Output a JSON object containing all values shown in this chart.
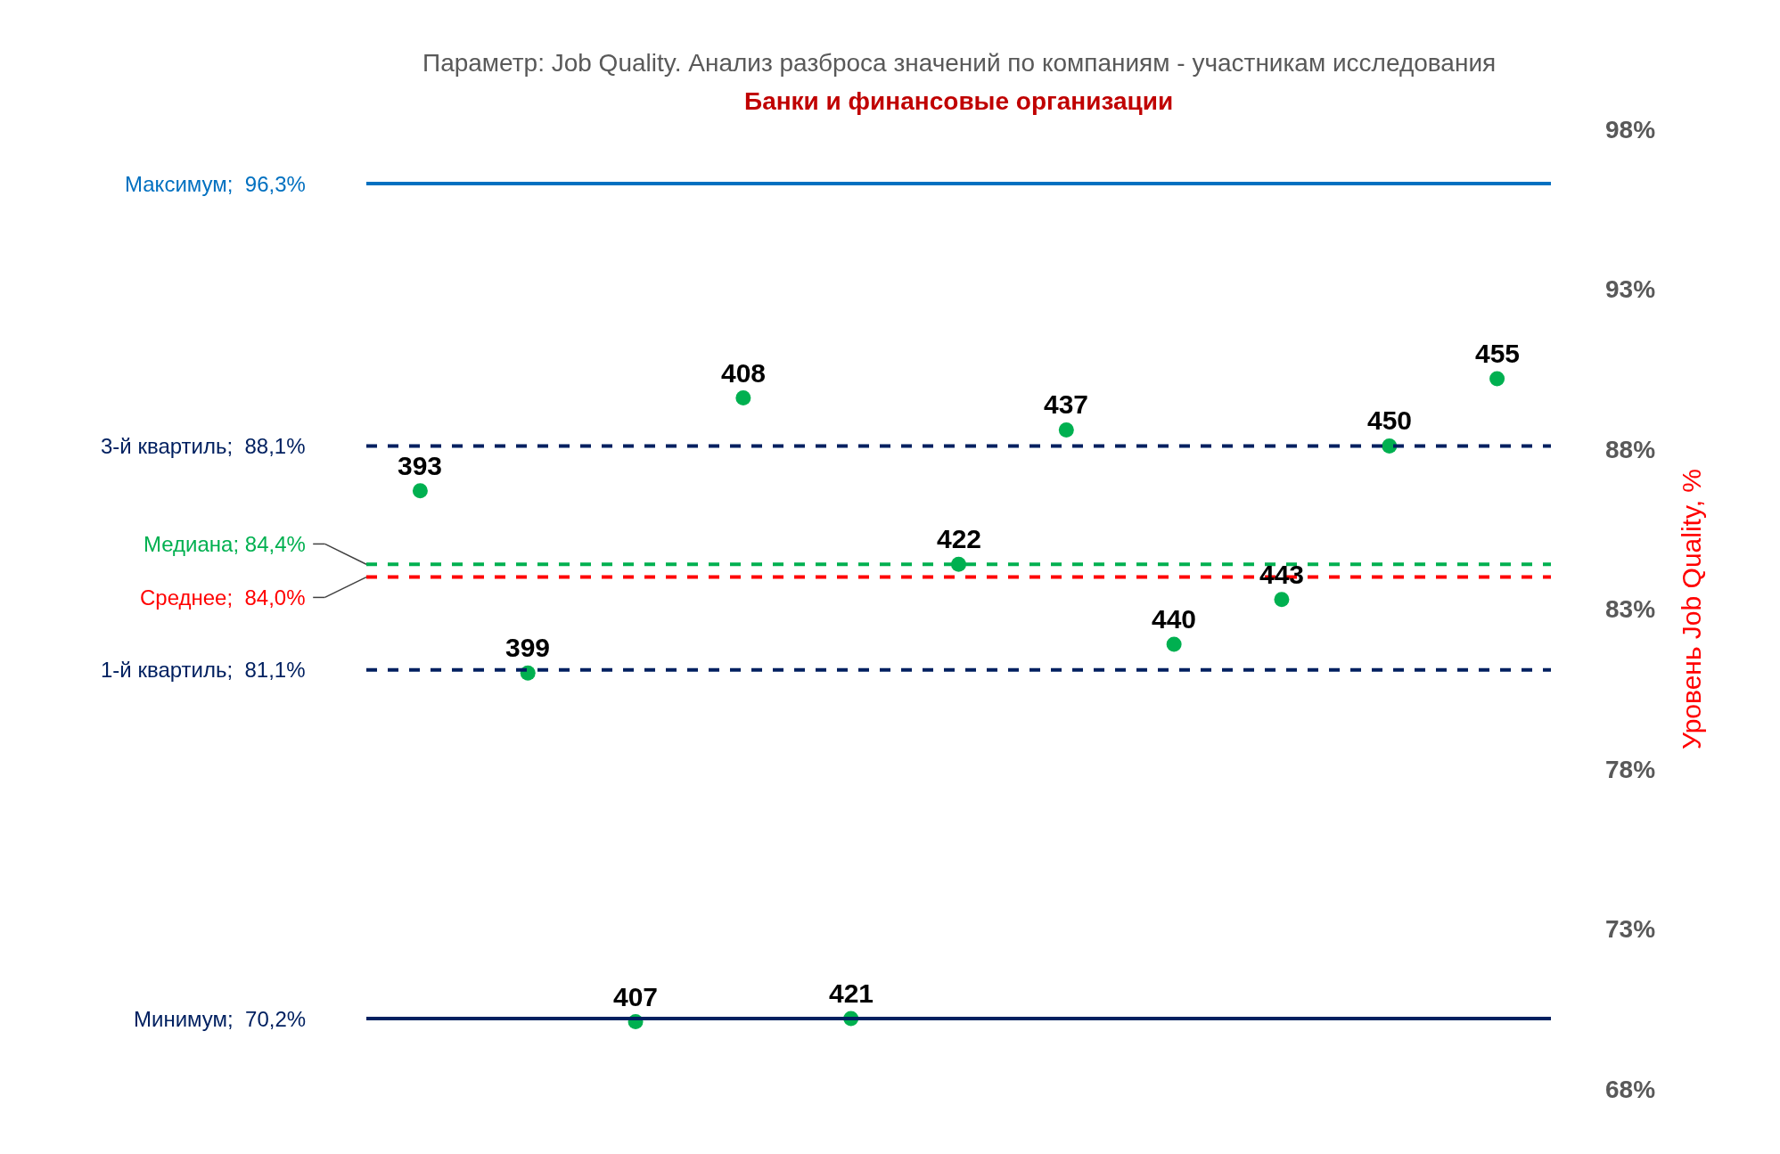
{
  "chart_data": {
    "type": "scatter",
    "title": "Параметр: Job Quality. Анализ разброса значений по компаниям - участникам исследования",
    "subtitle": "Банки и финансовые организации",
    "ylabel": "Уровень Job Quality, %",
    "categories": [
      null,
      null,
      null,
      null,
      null,
      null,
      null,
      null,
      null,
      null,
      null
    ],
    "series": [
      {
        "color": "#00b050",
        "values": [
          86.7,
          81.0,
          70.1,
          89.6,
          70.2,
          84.4,
          88.6,
          81.9,
          83.3,
          88.1,
          90.2
        ]
      }
    ],
    "annotations": [
      {
        "text": "393",
        "y": 86.7
      },
      {
        "text": "399",
        "y": 81.0
      },
      {
        "text": "407",
        "y": 70.1
      },
      {
        "text": "408",
        "y": 89.6
      },
      {
        "text": "421",
        "y": 70.2
      },
      {
        "text": "422",
        "y": 84.4
      },
      {
        "text": "437",
        "y": 88.6
      },
      {
        "text": "440",
        "y": 81.9
      },
      {
        "text": "443",
        "y": 83.3
      },
      {
        "text": "450",
        "y": 88.1
      },
      {
        "text": "455",
        "y": 90.2
      }
    ],
    "ylim": [
      68,
      98
    ],
    "yticks": [
      {
        "value": 68,
        "label": "68%"
      },
      {
        "value": 73,
        "label": "73%"
      },
      {
        "value": 78,
        "label": "78%"
      },
      {
        "value": 83,
        "label": "83%"
      },
      {
        "value": 88,
        "label": "88%"
      },
      {
        "value": 93,
        "label": "93%"
      },
      {
        "value": 98,
        "label": "98%"
      }
    ],
    "tick_labels": "y",
    "ref_lines": [
      {
        "axis": "y",
        "value": 96.3,
        "label": "Максимум;  96,3%",
        "color": "#0070c0",
        "line_style": "solid"
      },
      {
        "axis": "y",
        "value": 88.1,
        "label": "3-й квартиль;  88,1%",
        "color": "#002060",
        "line_style": "dashed"
      },
      {
        "axis": "y",
        "value": 84.4,
        "label": "Медиана; 84,4%",
        "color": "#00b050",
        "line_style": "dashed"
      },
      {
        "axis": "y",
        "value": 84.0,
        "label": "Среднее;  84,0%",
        "color": "#ff0000",
        "line_style": "dashed"
      },
      {
        "axis": "y",
        "value": 81.1,
        "label": "1-й квартиль;  81,1%",
        "color": "#002060",
        "line_style": "dashed"
      },
      {
        "axis": "y",
        "value": 70.2,
        "label": "Минимум;  70,2%",
        "color": "#002060",
        "line_style": "solid"
      }
    ],
    "marker": "circle"
  }
}
